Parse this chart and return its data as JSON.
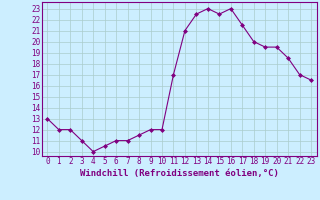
{
  "x": [
    0,
    1,
    2,
    3,
    4,
    5,
    6,
    7,
    8,
    9,
    10,
    11,
    12,
    13,
    14,
    15,
    16,
    17,
    18,
    19,
    20,
    21,
    22,
    23
  ],
  "y": [
    13,
    12,
    12,
    11,
    10,
    10.5,
    11,
    11,
    11.5,
    12,
    12,
    17,
    21,
    22.5,
    23,
    22.5,
    23,
    21.5,
    20,
    19.5,
    19.5,
    18.5,
    17,
    16.5
  ],
  "line_color": "#800080",
  "marker": "D",
  "marker_size": 2,
  "bg_color": "#cceeff",
  "grid_color": "#aacccc",
  "xlabel": "Windchill (Refroidissement éolien,°C)",
  "ylabel_ticks": [
    10,
    11,
    12,
    13,
    14,
    15,
    16,
    17,
    18,
    19,
    20,
    21,
    22,
    23
  ],
  "ylim": [
    9.6,
    23.6
  ],
  "xlim": [
    -0.5,
    23.5
  ],
  "xticks": [
    0,
    1,
    2,
    3,
    4,
    5,
    6,
    7,
    8,
    9,
    10,
    11,
    12,
    13,
    14,
    15,
    16,
    17,
    18,
    19,
    20,
    21,
    22,
    23
  ],
  "spine_color": "#800080",
  "tick_color": "#800080",
  "label_fontsize": 6.5,
  "tick_fontsize": 5.5
}
